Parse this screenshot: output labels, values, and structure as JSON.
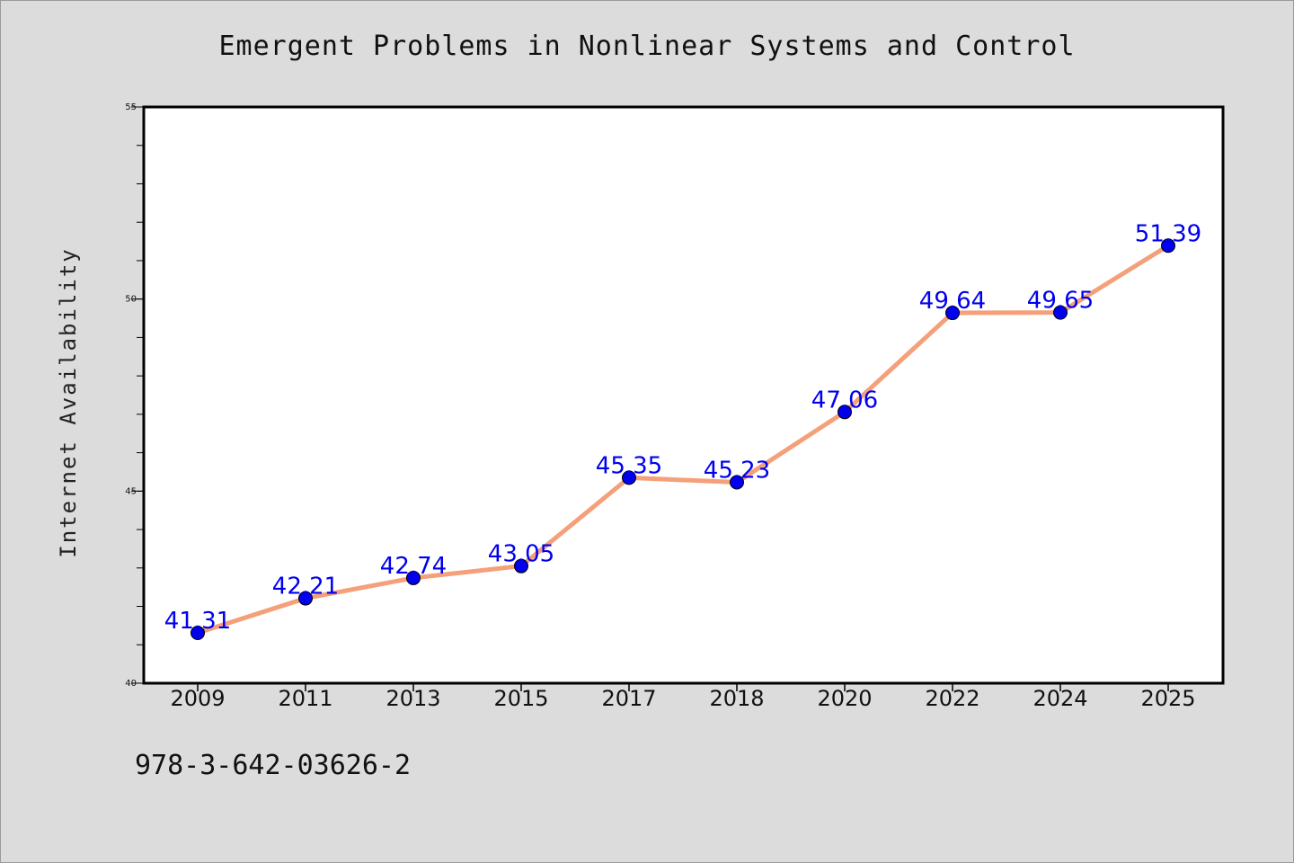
{
  "chart_data": {
    "type": "line",
    "title": "Emergent Problems in Nonlinear Systems and Control",
    "xlabel": "",
    "ylabel": "Internet Availability",
    "categories": [
      "2009",
      "2011",
      "2013",
      "2015",
      "2017",
      "2018",
      "2020",
      "2022",
      "2024",
      "2025"
    ],
    "series": [
      {
        "values": [
          41.31,
          42.21,
          42.74,
          43.05,
          45.35,
          45.23,
          47.06,
          49.64,
          49.65,
          51.39
        ],
        "labels": [
          "41.31",
          "42.21",
          "42.74",
          "43.05",
          "45.35",
          "45.23",
          "47.06",
          "49.64",
          "49.65",
          "51.39"
        ]
      }
    ],
    "ylim": [
      40,
      55
    ],
    "yticks": [
      "40",
      "45",
      "50",
      "55"
    ],
    "grid": false,
    "line_color": "#f4a07a",
    "marker_color": "#0000ee",
    "label_color": "#0000ee"
  },
  "footer": {
    "isbn": "978-3-642-03626-2"
  }
}
